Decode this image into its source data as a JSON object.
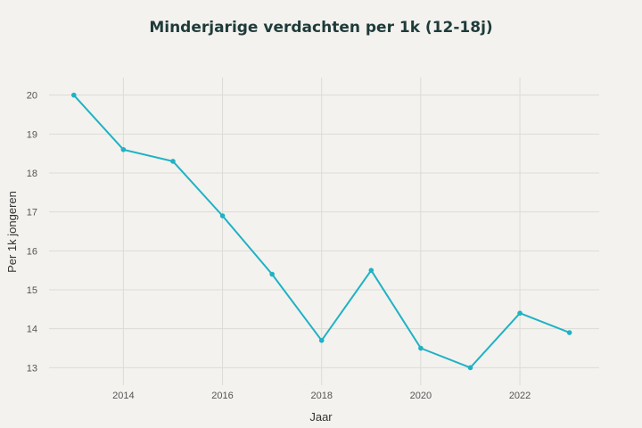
{
  "chart_data": {
    "type": "line",
    "title": "Minderjarige verdachten per 1k (12-18j)",
    "xlabel": "Jaar",
    "ylabel": "Per 1k jongeren",
    "x": [
      2013,
      2014,
      2015,
      2016,
      2017,
      2018,
      2019,
      2020,
      2021,
      2022,
      2023
    ],
    "series": [
      {
        "values": [
          20.0,
          18.6,
          18.3,
          16.9,
          15.4,
          13.7,
          15.5,
          13.5,
          13.0,
          14.4,
          13.9
        ]
      }
    ],
    "xlim": [
      2012.5,
      2023.6
    ],
    "ylim": [
      12.55,
      20.45
    ],
    "xticks": [
      "2014",
      "2016",
      "2018",
      "2020",
      "2022"
    ],
    "yticks": [
      "13",
      "14",
      "15",
      "16",
      "17",
      "18",
      "19",
      "20"
    ],
    "grid": true,
    "line_color": "#1fb2c4"
  }
}
